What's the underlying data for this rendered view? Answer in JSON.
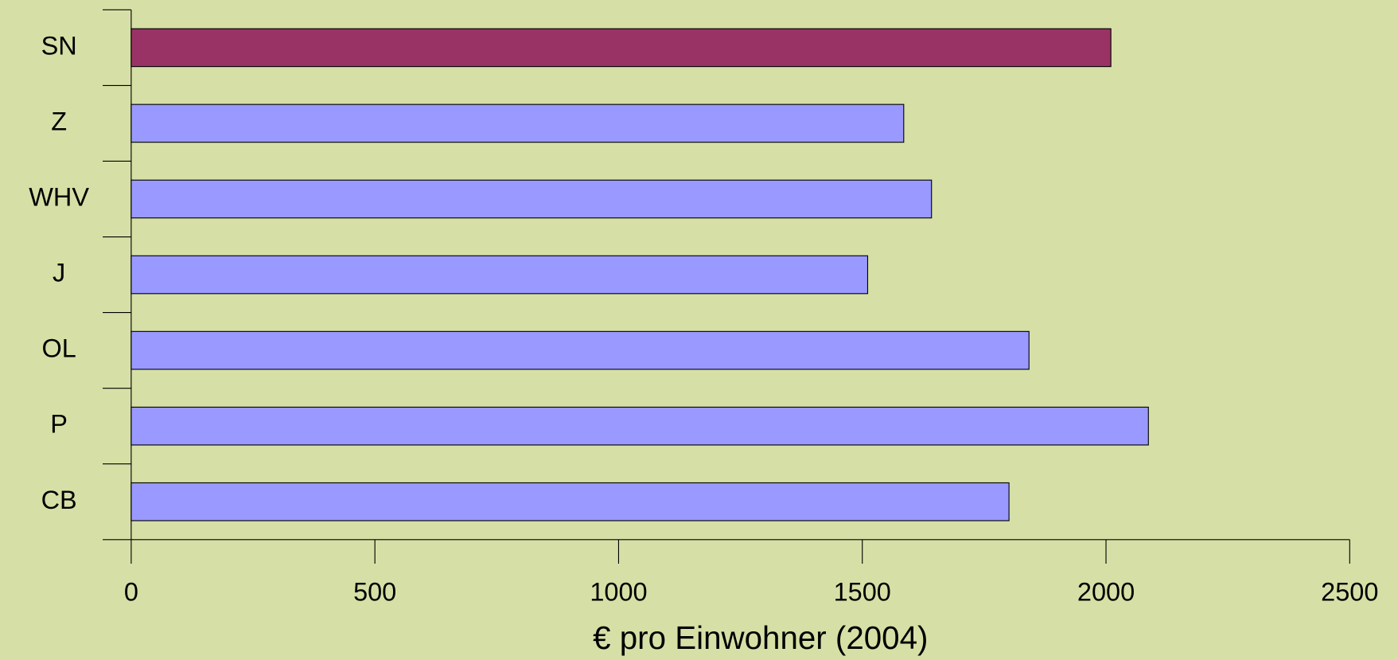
{
  "chart_data": {
    "type": "bar",
    "orientation": "horizontal",
    "categories": [
      "SN",
      "Z",
      "WHV",
      "J",
      "OL",
      "P",
      "CB"
    ],
    "values": [
      2010,
      1585,
      1642,
      1511,
      1842,
      2087,
      1801
    ],
    "colors": [
      "#993366",
      "#9999ff",
      "#9999ff",
      "#9999ff",
      "#9999ff",
      "#9999ff",
      "#9999ff"
    ],
    "xlabel": "€ pro Einwohner (2004)",
    "xlim": [
      0,
      2500
    ],
    "xticks": [
      0,
      500,
      1000,
      1500,
      2000,
      2500
    ],
    "grid": false
  }
}
